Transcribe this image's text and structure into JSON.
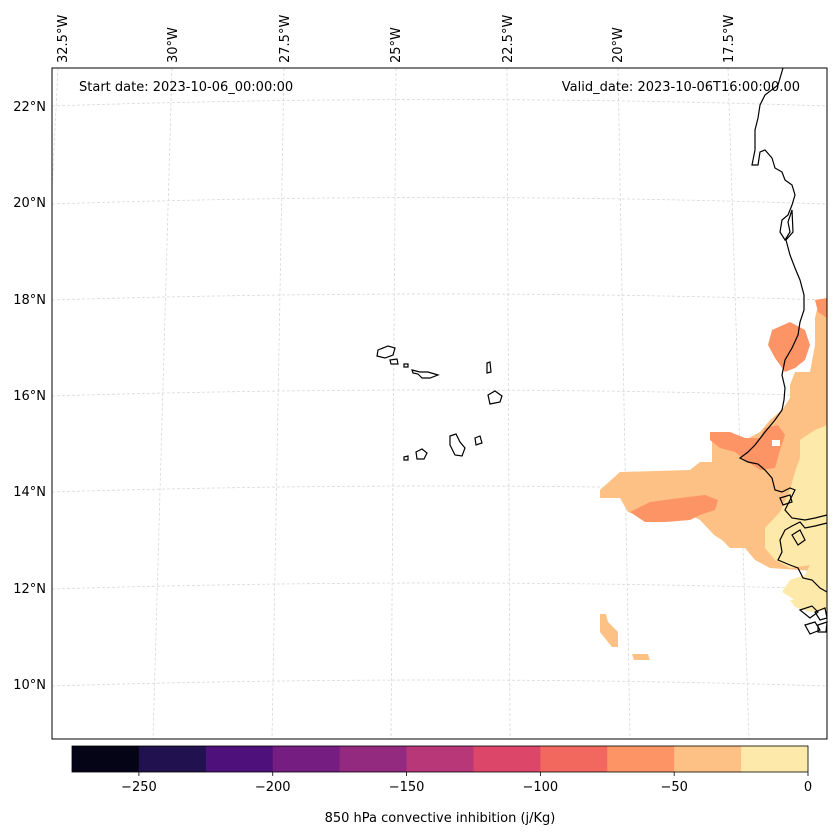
{
  "header": {
    "start_date": "Start date: 2023-10-06_00:00:00",
    "valid_date": "Valid_date: 2023-10-06T16:00:00.00"
  },
  "lon_labels": [
    "32.5°W",
    "30°W",
    "27.5°W",
    "25°W",
    "22.5°W",
    "20°W",
    "17.5°W"
  ],
  "lat_labels": [
    "22°N",
    "20°N",
    "18°N",
    "16°N",
    "14°N",
    "12°N",
    "10°N"
  ],
  "colorbar": {
    "label": "850 hPa convective inhibition (j/Kg)",
    "tick_labels": [
      "−250",
      "−200",
      "−150",
      "−100",
      "−50",
      "0"
    ],
    "colors": [
      "#050417",
      "#21114e",
      "#4e117b",
      "#761d81",
      "#932a80",
      "#b83779",
      "#db4669",
      "#f2685f",
      "#fd9465",
      "#fec185",
      "#fde9a9"
    ]
  },
  "colors": {
    "coastline": "#000000",
    "gridline": "#d8d8d8",
    "frame": "#000000"
  }
}
